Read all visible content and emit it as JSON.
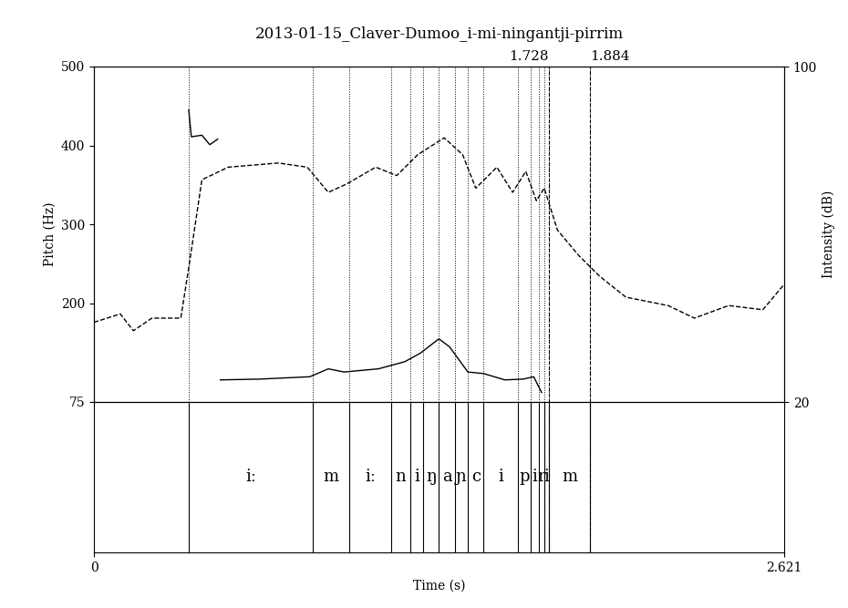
{
  "chart_data": {
    "type": "line",
    "title": "2013-01-15_Claver-Dumoo_i-mi-ningantji-pirrim",
    "x_label": "Time (s)",
    "y_label": "Pitch (Hz)",
    "y2_label": "Intensity (dB)",
    "xlim": [
      0,
      2.621
    ],
    "xticks": [
      0,
      2.621
    ],
    "ylim": [
      75,
      500
    ],
    "yticks": [
      75,
      200,
      300,
      400,
      500
    ],
    "y2lim": [
      20,
      100
    ],
    "y2ticks": [
      20,
      100
    ],
    "series": [
      {
        "type": "line",
        "color": "#000000",
        "line_style": "solid",
        "x": [
          0.36,
          0.37,
          0.41,
          0.44,
          0.47,
          0.475,
          0.48,
          0.63,
          0.82,
          0.89,
          0.95,
          1.08,
          1.18,
          1.24,
          1.31,
          1.35,
          1.42,
          1.48,
          1.56,
          1.63,
          1.67,
          1.7
        ],
        "values": [
          445,
          411,
          413,
          401,
          408,
          null,
          103,
          104,
          107,
          117,
          113,
          117,
          126,
          137,
          155,
          145,
          113,
          111,
          103,
          104,
          107,
          87
        ]
      },
      {
        "type": "line",
        "color": "#000000",
        "line_style": "dashed",
        "axis": "y2",
        "x": [
          0,
          0.1,
          0.15,
          0.22,
          0.33,
          0.36,
          0.41,
          0.51,
          0.7,
          0.81,
          0.89,
          0.96,
          1.07,
          1.15,
          1.23,
          1.33,
          1.4,
          1.45,
          1.53,
          1.59,
          1.64,
          1.68,
          1.71,
          1.76,
          1.84,
          1.92,
          2.02,
          2.18,
          2.28,
          2.41,
          2.54,
          2.62
        ],
        "values": [
          39,
          41,
          37,
          40,
          40,
          52,
          73,
          76,
          77,
          76,
          70,
          72,
          76,
          74,
          79,
          83,
          79,
          71,
          76,
          70,
          75,
          68,
          71,
          61,
          55,
          50,
          45,
          43,
          40,
          43,
          42,
          48
        ]
      }
    ],
    "cursors": [
      1.728,
      1.884
    ],
    "tier": {
      "boundaries": [
        0.36,
        0.83,
        0.97,
        1.13,
        1.2,
        1.25,
        1.31,
        1.37,
        1.42,
        1.48,
        1.61,
        1.66,
        1.69,
        1.71,
        1.728,
        1.884
      ],
      "labels": [
        "iː",
        "m",
        "iː",
        "n",
        "i",
        "ŋ",
        "a",
        "ɲ",
        "c",
        "i",
        "p",
        "i",
        "r",
        "i",
        "m"
      ]
    }
  }
}
